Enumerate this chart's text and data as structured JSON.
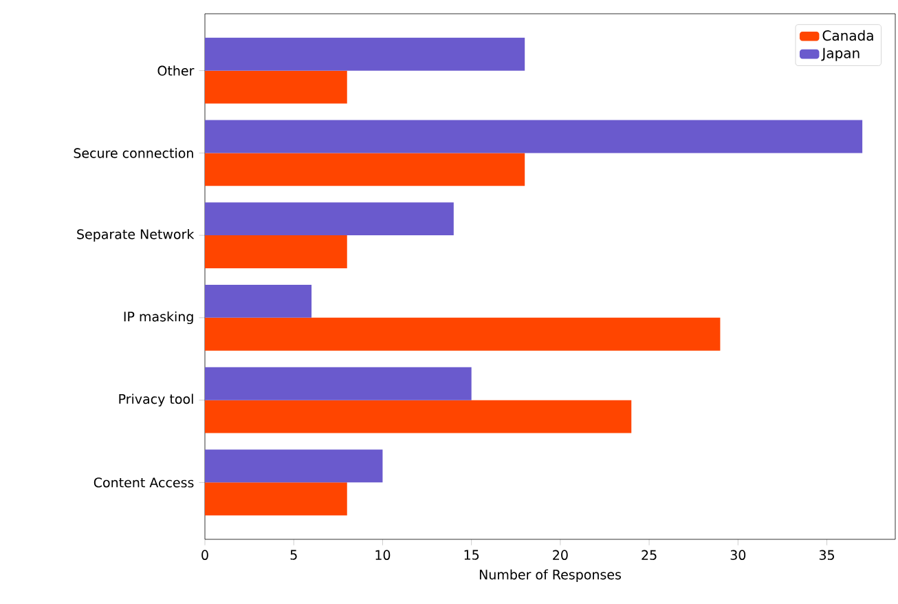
{
  "chart_data": {
    "type": "bar",
    "orientation": "horizontal",
    "xlabel": "Number of Responses",
    "categories": [
      "Other",
      "Secure connection",
      "Separate Network",
      "IP masking",
      "Privacy tool",
      "Content Access"
    ],
    "series": [
      {
        "name": "Canada",
        "color": "#ff4500",
        "values": [
          8,
          18,
          8,
          29,
          24,
          8
        ]
      },
      {
        "name": "Japan",
        "color": "#6a5acd",
        "values": [
          18,
          37,
          14,
          6,
          15,
          10
        ]
      }
    ],
    "xlim": [
      0,
      38.85
    ],
    "xticks": [
      0,
      5,
      10,
      15,
      20,
      25,
      30,
      35
    ],
    "legend": "top right",
    "grid": false
  }
}
